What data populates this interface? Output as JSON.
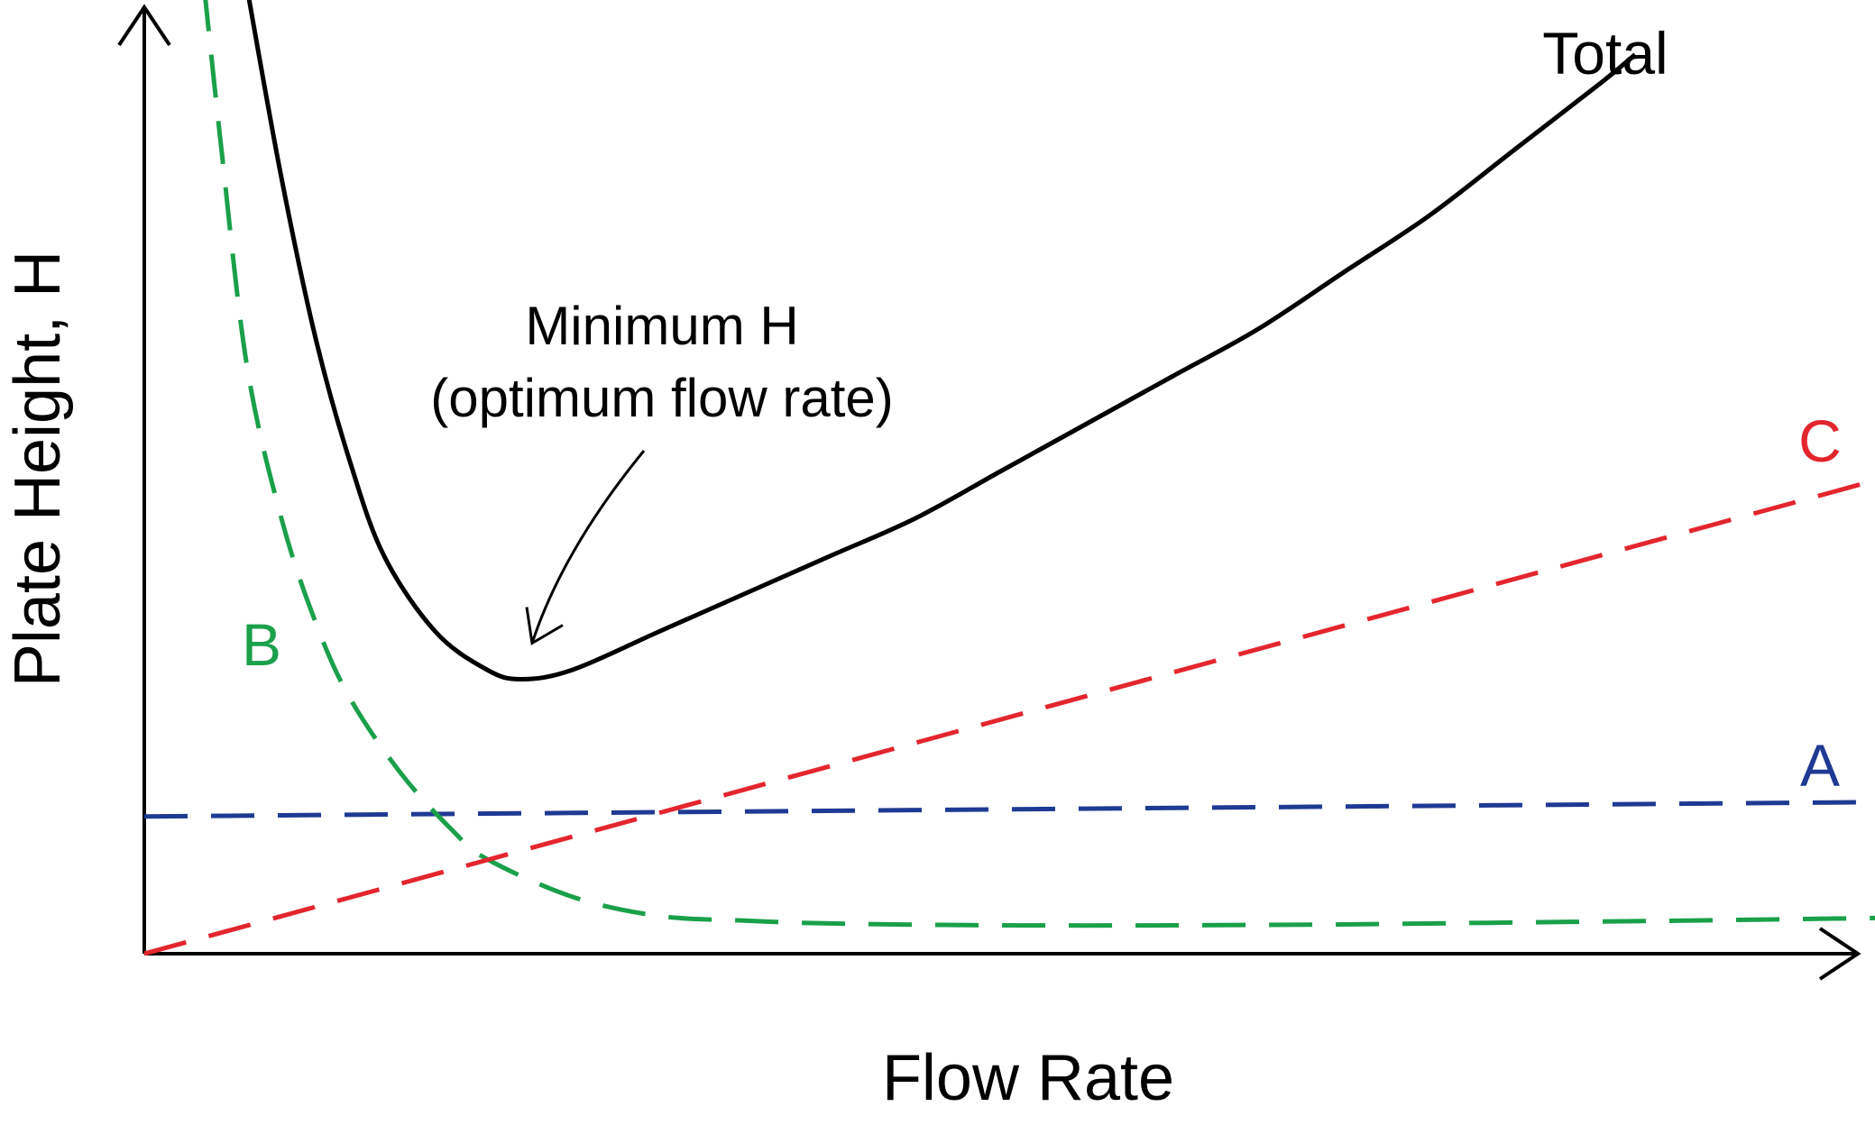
{
  "chart_data": {
    "type": "line",
    "xlabel": "Flow Rate",
    "ylabel": "Plate Height, H",
    "grid": false,
    "annotation": {
      "line1": "Minimum H",
      "line2": "(optimum flow rate)",
      "point": {
        "x": 0.22,
        "y": 0.29
      }
    },
    "series": [
      {
        "name": "Total",
        "color": "#000000",
        "dashed": false,
        "x": [
          0.06,
          0.08,
          0.1,
          0.12,
          0.14,
          0.17,
          0.2,
          0.22,
          0.25,
          0.3,
          0.35,
          0.4,
          0.45,
          0.5,
          0.55,
          0.6,
          0.65,
          0.7,
          0.75,
          0.8,
          0.85,
          0.87
        ],
        "y": [
          1.02,
          0.82,
          0.65,
          0.52,
          0.42,
          0.34,
          0.3,
          0.29,
          0.3,
          0.34,
          0.38,
          0.42,
          0.46,
          0.51,
          0.56,
          0.61,
          0.66,
          0.72,
          0.78,
          0.85,
          0.92,
          0.95
        ]
      },
      {
        "name": "A",
        "color": "#1f3a93",
        "dashed": true,
        "x": [
          0.0,
          1.0
        ],
        "y": [
          0.145,
          0.16
        ]
      },
      {
        "name": "B",
        "color": "#1aa04a",
        "dashed": true,
        "x": [
          0.035,
          0.045,
          0.06,
          0.08,
          0.1,
          0.12,
          0.15,
          0.18,
          0.2,
          0.25,
          0.3,
          0.35,
          0.4,
          0.5,
          0.6,
          0.7,
          0.8,
          0.9,
          1.02
        ],
        "y": [
          1.02,
          0.85,
          0.62,
          0.46,
          0.35,
          0.27,
          0.19,
          0.13,
          0.1,
          0.06,
          0.04,
          0.035,
          0.032,
          0.03,
          0.03,
          0.031,
          0.033,
          0.035,
          0.038
        ]
      },
      {
        "name": "C",
        "color": "#e3262e",
        "dashed": true,
        "x": [
          0.0,
          1.02
        ],
        "y": [
          0.0,
          0.505
        ]
      }
    ],
    "series_labels": {
      "Total": "Total",
      "A": "A",
      "B": "B",
      "C": "C"
    }
  }
}
